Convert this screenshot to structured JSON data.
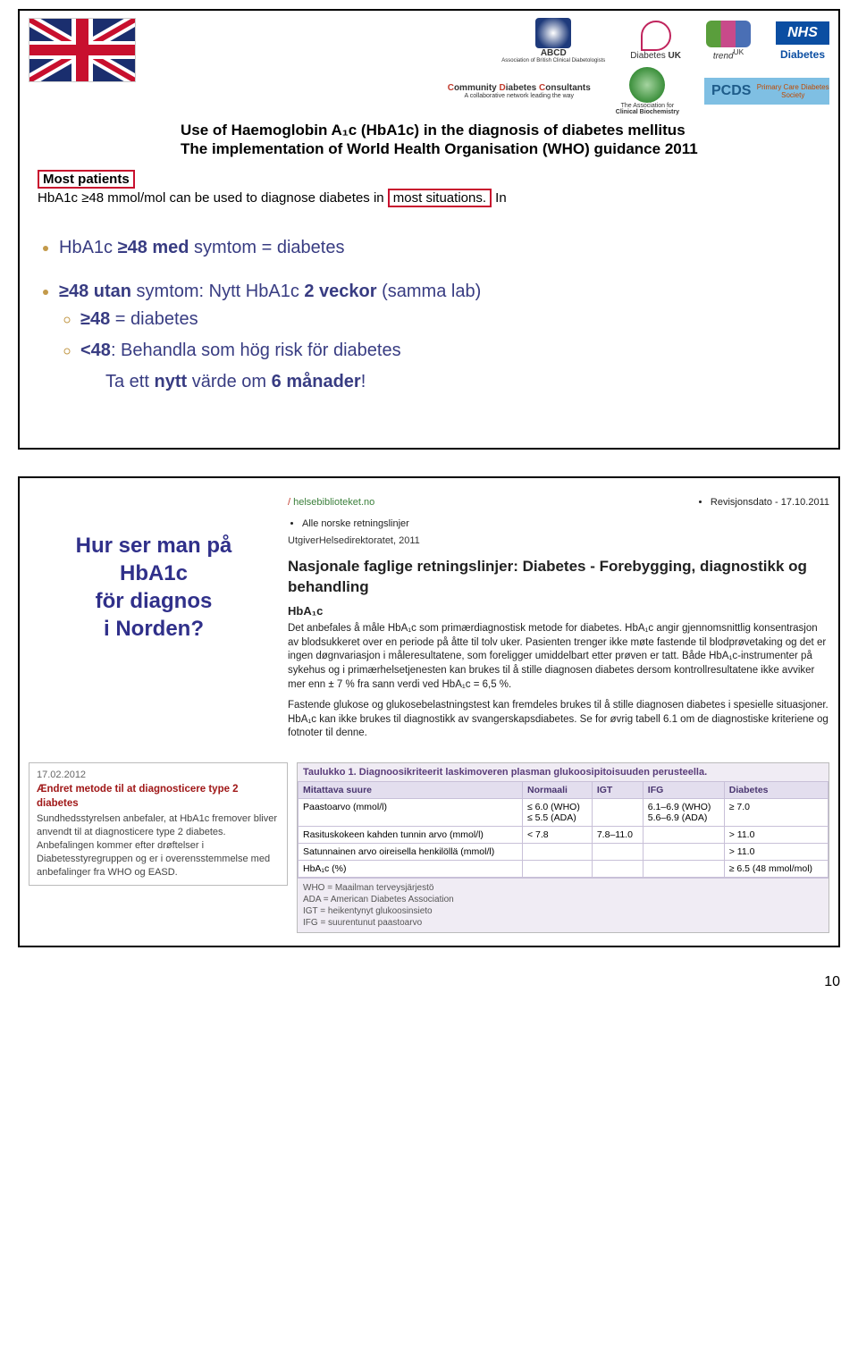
{
  "slide1": {
    "logos": {
      "abcd": "ABCD",
      "abcd_sub": "Association of British Clinical Diabetologists",
      "duk": "Diabetes",
      "duk_sub": "UK",
      "trend": "trend",
      "trend_sup": "UK",
      "nhs": "NHS",
      "nhs_sub": "Diabetes",
      "cdc": "Community Diabetes Consultants",
      "cdc_sub": "A collaborative network leading the way",
      "biochem": "The Association for",
      "biochem2": "Clinical Biochemistry",
      "pcds": "PCDS",
      "pcds_sub": "Primary Care Diabetes Society"
    },
    "title_line1": "Use of Haemoglobin A₁c (HbA1c) in the diagnosis of diabetes mellitus",
    "title_line2": "The implementation of World Health Organisation (WHO) guidance 2011",
    "most_patients_label": "Most patients",
    "most_patients_line_a": "HbA1c ≥48 mmol/mol can be used to diagnose diabetes in ",
    "most_patients_box": "most situations.",
    "most_patients_line_b": " In",
    "bullet1_a": "HbA1c ",
    "bullet1_b": "≥48 med",
    "bullet1_c": " symtom = diabetes",
    "bullet2_a": "≥48 utan",
    "bullet2_b": " symtom: Nytt HbA1c ",
    "bullet2_c": "2 veckor",
    "bullet2_d": " (samma lab)",
    "sub1_a": "≥48",
    "sub1_b": " = diabetes",
    "sub2_a": "<48",
    "sub2_b": ": Behandla som hög risk för diabetes",
    "sub2_line2_a": "Ta ett ",
    "sub2_line2_b": "nytt",
    "sub2_line2_c": " värde om ",
    "sub2_line2_d": "6 månader",
    "sub2_line2_e": "!"
  },
  "slide2": {
    "question_l1": "Hur ser man på",
    "question_l2": "HbA1c",
    "question_l3": "för diagnos",
    "question_l4": "i Norden?",
    "nor": {
      "site": "helsebiblioteket.no",
      "rev": "Revisjonsdato - 17.10.2011",
      "ret": "Alle norske retningslinjer",
      "source": "UtgiverHelsedirektoratet, 2011",
      "heading": "Nasjonale faglige retningslinjer: Diabetes - Forebygging, diagnostikk og behandling",
      "hba1c_label": "HbA₁c",
      "p1": "Det anbefales å måle HbA₁c som primærdiagnostisk metode for diabetes. HbA₁c angir gjennomsnittlig konsentrasjon av blodsukkeret over en periode på åtte til tolv uker. Pasienten trenger ikke møte fastende til blodprøvetaking og det er ingen døgnvariasjon i måleresultatene, som foreligger umiddelbart etter prøven er tatt. Både HbA₁c-instrumenter på sykehus og i primærhelsetjenesten kan brukes til å stille diagnosen diabetes dersom kontrollresultatene ikke avviker mer enn ± 7 % fra sann verdi ved HbA₁c = 6,5 %.",
      "p2": "Fastende glukose og glukosebelastningstest kan fremdeles brukes til å stille diagnosen diabetes i spesielle situasjoner. HbA₁c kan ikke brukes til diagnostikk av svangerskapsdiabetes. Se for øvrig tabell 6.1 om de diagnostiske kriteriene og fotnoter til denne."
    },
    "dk": {
      "date": "17.02.2012",
      "title": "Ændret metode til at diagnosticere type 2 diabetes",
      "body": "Sundhedsstyrelsen anbefaler, at HbA1c fremover bliver anvendt til at diagnosticere type 2 diabetes. Anbefalingen kommer efter drøftelser i Diabetesstyregruppen og er i overensstemmelse med anbefalinger fra WHO og EASD."
    },
    "fi": {
      "caption": "Taulukko 1. Diagnoosikriteerit laskimoveren plasman glukoosipitoisuuden perusteella.",
      "columns": [
        "Mitattava suure",
        "Normaali",
        "IGT",
        "IFG",
        "Diabetes"
      ],
      "rows": [
        [
          "Paastoarvo (mmol/l)",
          "≤ 6.0 (WHO)\n≤ 5.5 (ADA)",
          "",
          "6.1–6.9 (WHO)\n5.6–6.9 (ADA)",
          "≥ 7.0"
        ],
        [
          "Rasituskokeen kahden tunnin arvo (mmol/l)",
          "< 7.8",
          "7.8–11.0",
          "",
          "> 11.0"
        ],
        [
          "Satunnainen arvo oireisella henkilöllä (mmol/l)",
          "",
          "",
          "",
          "> 11.0"
        ],
        [
          "HbA₁c (%)",
          "",
          "",
          "",
          "≥ 6.5 (48 mmol/mol)"
        ]
      ],
      "footnotes": "WHO = Maailman terveysjärjestö\nADA = American Diabetes Association\nIGT = heikentynyt glukoosinsieto\nIFG = suurentunut paastoarvo"
    }
  },
  "page_number": "10"
}
